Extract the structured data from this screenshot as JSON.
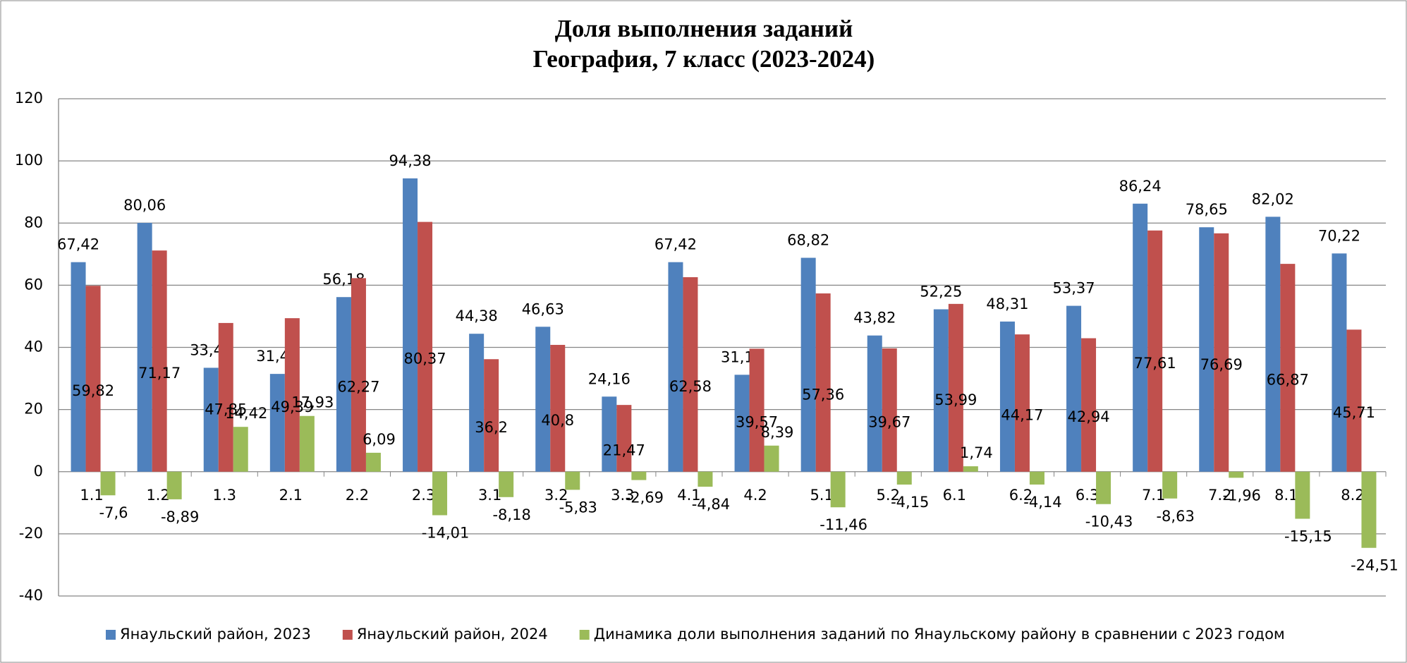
{
  "chart_data": {
    "type": "bar",
    "title": "Доля выполнения заданий",
    "subtitle": "География, 7 класс (2023-2024)",
    "categories": [
      "1.1",
      "1.2",
      "1.3",
      "2.1",
      "2.2",
      "2.3",
      "3.1",
      "3.2",
      "3.3",
      "4.1",
      "4.2",
      "5.1",
      "5.2",
      "6.1",
      "6.2",
      "6.3",
      "7.1",
      "7.2",
      "8.1",
      "8.2"
    ],
    "series": [
      {
        "name": "Янаульский район, 2023",
        "color": "#4f81bd",
        "values": [
          67.42,
          80.06,
          33.43,
          31.46,
          56.18,
          94.38,
          44.38,
          46.63,
          24.16,
          67.42,
          31.18,
          68.82,
          43.82,
          52.25,
          48.31,
          53.37,
          86.24,
          78.65,
          82.02,
          70.22
        ],
        "value_labels": [
          "67,42",
          "80,06",
          "33,43",
          "31,46",
          "56,18",
          "94,38",
          "44,38",
          "46,63",
          "24,16",
          "67,42",
          "31,18",
          "68,82",
          "43,82",
          "52,25",
          "48,31",
          "53,37",
          "86,24",
          "78,65",
          "82,02",
          "70,22"
        ]
      },
      {
        "name": "Янаульский район, 2024",
        "color": "#c0504d",
        "values": [
          59.82,
          71.17,
          47.85,
          49.39,
          62.27,
          80.37,
          36.2,
          40.8,
          21.47,
          62.58,
          39.57,
          57.36,
          39.67,
          53.99,
          44.17,
          42.94,
          77.61,
          76.69,
          66.87,
          45.71
        ],
        "value_labels": [
          "59,82",
          "71,17",
          "47,85",
          "49,39",
          "62,27",
          "80,37",
          "36,2",
          "40,8",
          "21,47",
          "62,58",
          "39,57",
          "57,36",
          "39,67",
          "53,99",
          "44,17",
          "42,94",
          "77,61",
          "76,69",
          "66,87",
          "45,71"
        ]
      },
      {
        "name": "Динамика доли выполнения заданий по Янаульскому району в сравнении с 2023 годом",
        "color": "#9bbb59",
        "values": [
          -7.6,
          -8.89,
          14.42,
          17.93,
          6.09,
          -14.01,
          -8.18,
          -5.83,
          -2.69,
          -4.84,
          8.39,
          -11.46,
          -4.15,
          1.74,
          -4.14,
          -10.43,
          -8.63,
          -1.96,
          -15.15,
          -24.51
        ],
        "value_labels": [
          "-7,6",
          "-8,89",
          "14,42",
          "17,93",
          "6,09",
          "-14,01",
          "-8,18",
          "-5,83",
          "-2,69",
          "-4,84",
          "8,39",
          "-11,46",
          "-4,15",
          "1,74",
          "-4,14",
          "-10,43",
          "-8,63",
          "-1,96",
          "-15,15",
          "-24,51"
        ]
      }
    ],
    "ylim": [
      -40,
      120
    ],
    "yticks": [
      -40,
      -20,
      0,
      20,
      40,
      60,
      80,
      100,
      120
    ],
    "grid": true,
    "legend": "bottom"
  }
}
